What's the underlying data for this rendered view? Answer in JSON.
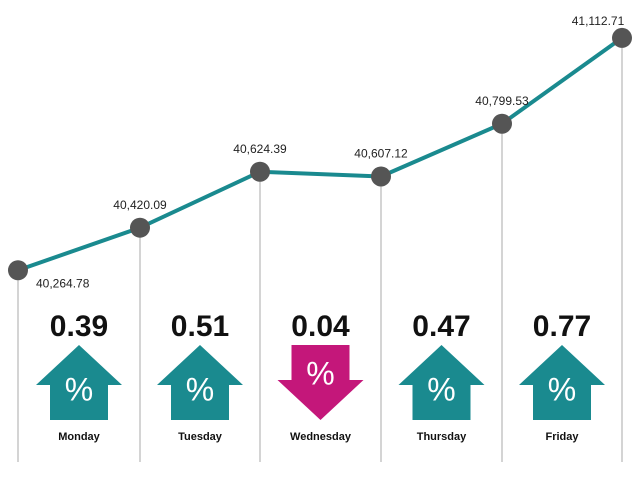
{
  "chart_data": {
    "type": "line",
    "categories": [
      null,
      null,
      null,
      null,
      null,
      null
    ],
    "values": [
      40264.78,
      40420.09,
      40624.39,
      40607.12,
      40799.53,
      41112.71
    ],
    "value_labels": [
      "40,264.78",
      "40,420.09",
      "40,624.39",
      "40,607.12",
      "40,799.53",
      "41,112.71"
    ],
    "color": "#1a8a8f",
    "marker_color": "#555555",
    "ylim": [
      40200,
      41200
    ],
    "changes": {
      "categories": [
        "Monday",
        "Tuesday",
        "Wednesday",
        "Thursday",
        "Friday"
      ],
      "values": [
        0.39,
        0.51,
        0.04,
        0.47,
        0.77
      ],
      "direction": [
        "up",
        "up",
        "down",
        "up",
        "up"
      ],
      "symbol": "%",
      "up_color": "#1a8a8f",
      "down_color": "#c4177a"
    }
  }
}
